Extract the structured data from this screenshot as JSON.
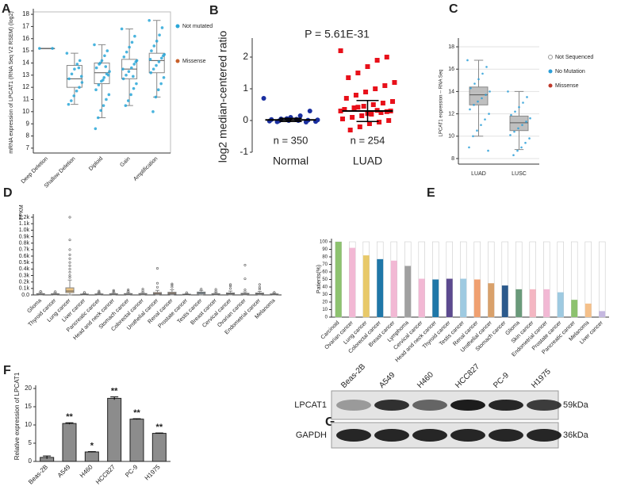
{
  "chart_data": [
    {
      "panel": "A",
      "type": "box",
      "y_label": "mRNA expression of LPCAT1 (RNA Seq V2 RSEM) (log2)",
      "categories": [
        "Deep Deletion",
        "Shallow Deletion",
        "Diploid",
        "Gain",
        "Amplification"
      ],
      "ylim": [
        6.6,
        18.2
      ],
      "yticks": [
        7,
        8,
        9,
        10,
        11,
        12,
        13,
        14,
        15,
        16,
        17,
        18
      ],
      "grid": false,
      "frame": true,
      "box_color": "none",
      "boxes": [
        {
          "q1": 15.2,
          "median": 15.2,
          "q3": 15.2,
          "whisker_low": 15.2,
          "whisker_high": 15.2
        },
        {
          "q1": 12.0,
          "median": 12.7,
          "q3": 13.8,
          "whisker_low": 10.6,
          "whisker_high": 14.8
        },
        {
          "q1": 12.3,
          "median": 13.2,
          "q3": 14.0,
          "whisker_low": 9.5,
          "whisker_high": 15.5
        },
        {
          "q1": 12.7,
          "median": 13.5,
          "q3": 14.3,
          "whisker_low": 10.5,
          "whisker_high": 16.8
        },
        {
          "q1": 13.2,
          "median": 14.2,
          "q3": 14.8,
          "whisker_low": 11.2,
          "whisker_high": 17.5
        }
      ],
      "series": [
        {
          "name": "Not mutated",
          "color": "#2aa7d8",
          "values": [
            [
              15.2,
              15.2
            ],
            [
              14.8,
              14.2,
              13.9,
              13.5,
              13.1,
              12.7,
              12.4,
              12.0,
              11.7,
              11.3,
              10.9,
              10.6,
              12.9,
              13.6
            ],
            [
              15.5,
              15.0,
              14.6,
              14.2,
              13.9,
              13.6,
              13.3,
              13.1,
              12.8,
              12.5,
              12.2,
              11.8,
              11.4,
              11.0,
              10.5,
              10.1,
              9.5,
              8.6,
              13.0,
              13.7,
              12.6,
              14.0
            ],
            [
              16.8,
              16.2,
              15.7,
              15.3,
              14.9,
              14.5,
              14.2,
              13.9,
              13.6,
              13.3,
              13.0,
              12.7,
              12.3,
              11.9,
              11.4,
              10.9,
              10.5,
              13.5,
              14.1,
              12.9
            ],
            [
              17.5,
              16.9,
              16.3,
              15.8,
              15.4,
              15.0,
              14.7,
              14.4,
              14.1,
              13.8,
              13.5,
              13.2,
              12.8,
              12.3,
              11.8,
              11.2,
              10.0,
              14.3,
              14.6
            ]
          ]
        },
        {
          "name": "Missense",
          "color": "#c8602a",
          "values": [
            [],
            [],
            [],
            [],
            []
          ]
        }
      ]
    },
    {
      "panel": "B",
      "type": "scatter",
      "y_label": "log2 median-centered ratio",
      "annotation": "P = 5.61E-31",
      "categories": [
        "Normal",
        "LUAD"
      ],
      "count_labels": [
        "n = 350",
        "n = 254"
      ],
      "ylim": [
        -1,
        2.5
      ],
      "yticks": [
        -1,
        0,
        1,
        2
      ],
      "grid": false,
      "colors": [
        "#1a2fa0",
        "#e8101a"
      ],
      "points": [
        [
          0.7,
          0.3,
          0.15,
          0.1,
          0.05,
          0.03,
          0.02,
          0.01,
          0,
          0,
          -0.01,
          -0.02,
          -0.03,
          -0.05,
          0.04,
          0.06,
          -0.04
        ],
        [
          2.2,
          2.0,
          1.9,
          1.7,
          1.5,
          1.35,
          1.2,
          1.1,
          1.0,
          0.9,
          0.8,
          0.7,
          0.6,
          0.55,
          0.5,
          0.45,
          0.4,
          0.35,
          0.3,
          0.25,
          0.2,
          0.15,
          0.1,
          0.05,
          0,
          -0.05,
          -0.1,
          -0.2,
          -0.3,
          0.3,
          0.28,
          0.32,
          0.22,
          0.42
        ]
      ],
      "means": [
        0.02,
        0.3
      ],
      "sds": [
        0.05,
        0.33
      ]
    },
    {
      "panel": "C",
      "type": "box",
      "y_label": "LPCAT1 expression -- RNA Seq",
      "categories": [
        "LUAD",
        "LUSC"
      ],
      "ylim": [
        7.5,
        18.5
      ],
      "yticks": [
        8,
        10,
        12,
        14,
        16,
        18
      ],
      "grid": true,
      "frame": false,
      "box_color": "#b4b4b4",
      "boxes": [
        {
          "q1": 12.8,
          "median": 13.7,
          "q3": 14.4,
          "whisker_low": 10.0,
          "whisker_high": 16.8
        },
        {
          "q1": 10.5,
          "median": 11.2,
          "q3": 11.8,
          "whisker_low": 8.8,
          "whisker_high": 14.0
        }
      ],
      "series": [
        {
          "name": "Not Sequenced",
          "color": "#ffffff",
          "values": [
            [],
            []
          ]
        },
        {
          "name": "No Mutation",
          "color": "#2c9fd8",
          "values": [
            [
              16.8,
              16.2,
              15.6,
              15.1,
              14.7,
              14.3,
              14.0,
              13.7,
              13.4,
              13.1,
              12.8,
              12.4,
              12.0,
              11.5,
              11.0,
              10.5,
              10.0,
              9.0,
              8.7
            ],
            [
              14.0,
              13.5,
              13.0,
              12.6,
              12.2,
              11.9,
              11.6,
              11.3,
              11.0,
              10.7,
              10.4,
              10.1,
              9.8,
              9.4,
              9.0,
              8.7,
              8.3
            ]
          ]
        },
        {
          "name": "Missense",
          "color": "#c0392b",
          "values": [
            [],
            []
          ]
        }
      ]
    },
    {
      "panel": "D",
      "type": "box",
      "y_label": "FPKM",
      "categories": [
        "Glioma",
        "Thyroid cancer",
        "Lung cancer",
        "Liver cancer",
        "Pancreatic cancer",
        "Head and neck cancer",
        "Stomach cancer",
        "Colorectal cancer",
        "Urothelial cancer",
        "Renal cancer",
        "Prostate cancer",
        "Testis cancer",
        "Breast cancer",
        "Cervical cancer",
        "Ovarian cancer",
        "Endometrial cancer",
        "Melanoma"
      ],
      "ylim": [
        0,
        1200
      ],
      "yticks": [
        {
          "value": 0,
          "label": "0.0"
        },
        {
          "value": 100,
          "label": "0.1k"
        },
        {
          "value": 200,
          "label": "0.2k"
        },
        {
          "value": 300,
          "label": "0.3k"
        },
        {
          "value": 400,
          "label": "0.4k"
        },
        {
          "value": 500,
          "label": "0.5k"
        },
        {
          "value": 600,
          "label": "0.6k"
        },
        {
          "value": 700,
          "label": "0.7k"
        },
        {
          "value": 800,
          "label": "0.8k"
        },
        {
          "value": 900,
          "label": "0.9k"
        },
        {
          "value": 1000,
          "label": "1.0k"
        },
        {
          "value": 1100,
          "label": "1.1k"
        },
        {
          "value": 1200,
          "label": "1.2k"
        }
      ],
      "grid": false,
      "frame": false,
      "box_colors": [
        "#c8c8c8",
        "#c8c8c8",
        "#e8b86c",
        "#c8c8c8",
        "#c8c8c8",
        "#c8c8c8",
        "#c8c8c8",
        "#c8c8c8",
        "#e8a070",
        "#d8a070",
        "#c8c8c8",
        "#8fc7e8",
        "#c8c8c8",
        "#c8c8c8",
        "#c8c8c8",
        "#c8c8c8",
        "#c8c8c8"
      ],
      "boxes": [
        {
          "q1": 5,
          "median": 12,
          "q3": 20,
          "whisker_low": 0,
          "whisker_high": 40,
          "outliers": [
            55
          ]
        },
        {
          "q1": 4,
          "median": 10,
          "q3": 18,
          "whisker_low": 0,
          "whisker_high": 35,
          "outliers": [
            50
          ]
        },
        {
          "q1": 35,
          "median": 60,
          "q3": 110,
          "whisker_low": 2,
          "whisker_high": 230,
          "outliers": [
            1200,
            850,
            700,
            620,
            560,
            500,
            450,
            400,
            350,
            300,
            270
          ]
        },
        {
          "q1": 3,
          "median": 8,
          "q3": 14,
          "whisker_low": 0,
          "whisker_high": 25,
          "outliers": [
            40
          ]
        },
        {
          "q1": 4,
          "median": 9,
          "q3": 16,
          "whisker_low": 0,
          "whisker_high": 30,
          "outliers": [
            45,
            60
          ]
        },
        {
          "q1": 5,
          "median": 11,
          "q3": 19,
          "whisker_low": 0,
          "whisker_high": 35,
          "outliers": [
            55,
            70
          ]
        },
        {
          "q1": 5,
          "median": 12,
          "q3": 21,
          "whisker_low": 0,
          "whisker_high": 40,
          "outliers": [
            60,
            80
          ]
        },
        {
          "q1": 6,
          "median": 13,
          "q3": 22,
          "whisker_low": 0,
          "whisker_high": 40,
          "outliers": [
            65,
            90
          ]
        },
        {
          "q1": 10,
          "median": 22,
          "q3": 38,
          "whisker_low": 0,
          "whisker_high": 70,
          "outliers": [
            120,
            180,
            410
          ]
        },
        {
          "q1": 12,
          "median": 25,
          "q3": 42,
          "whisker_low": 0,
          "whisker_high": 80,
          "outliers": [
            120,
            150,
            170
          ]
        },
        {
          "q1": 3,
          "median": 7,
          "q3": 12,
          "whisker_low": 0,
          "whisker_high": 22,
          "outliers": [
            35
          ]
        },
        {
          "q1": 15,
          "median": 30,
          "q3": 45,
          "whisker_low": 2,
          "whisker_high": 70,
          "outliers": [
            90
          ]
        },
        {
          "q1": 5,
          "median": 11,
          "q3": 20,
          "whisker_low": 0,
          "whisker_high": 38,
          "outliers": [
            60,
            85
          ]
        },
        {
          "q1": 8,
          "median": 18,
          "q3": 32,
          "whisker_low": 0,
          "whisker_high": 60,
          "outliers": [
            100,
            140,
            160
          ]
        },
        {
          "q1": 6,
          "median": 14,
          "q3": 25,
          "whisker_low": 0,
          "whisker_high": 48,
          "outliers": [
            80,
            250,
            460
          ]
        },
        {
          "q1": 8,
          "median": 17,
          "q3": 30,
          "whisker_low": 0,
          "whisker_high": 55,
          "outliers": [
            90,
            120,
            160
          ]
        },
        {
          "q1": 4,
          "median": 9,
          "q3": 16,
          "whisker_low": 0,
          "whisker_high": 28,
          "outliers": [
            40
          ]
        }
      ]
    },
    {
      "panel": "E",
      "type": "bar",
      "y_label": "Patients(%)",
      "categories": [
        "Carcinoid",
        "Ovarian cancer",
        "Lung cancer",
        "Colorectal cancer",
        "Breast cancer",
        "Lymphoma",
        "Cervical cancer",
        "Head and neck cancer",
        "Thyroid cancer",
        "Testis cancer",
        "Renal cancer",
        "Urothelial cancer",
        "Stomach cancer",
        "Glioma",
        "Skin cancer",
        "Endometrial cancer",
        "Prostate cancer",
        "Pancreatic cancer",
        "Melanoma",
        "Liver cancer"
      ],
      "values": [
        100,
        92,
        82,
        77,
        75,
        68,
        51,
        50,
        51,
        51,
        50,
        45,
        42,
        37,
        37,
        37,
        33,
        23,
        18,
        8
      ],
      "colors": [
        "#8dc26f",
        "#f2b8d4",
        "#e8c96a",
        "#1f77a8",
        "#f2b8d4",
        "#a0a0a0",
        "#f2b8d4",
        "#1f77a8",
        "#5c4a8f",
        "#9ecae1",
        "#f0a070",
        "#d9a16b",
        "#2c5a8c",
        "#6a9a7a",
        "#f4b6c2",
        "#f2b8d4",
        "#9ecae1",
        "#8dc26f",
        "#f5c08a",
        "#c5b8e0"
      ],
      "ylim": [
        0,
        100
      ],
      "yticks": [
        0,
        10,
        20,
        30,
        40,
        50,
        60,
        70,
        80,
        90,
        100
      ],
      "grid": false,
      "frame_bars": true
    },
    {
      "panel": "F",
      "type": "bar",
      "y_label": "Relative expression of LPCAT1",
      "categories": [
        "Beas-2B",
        "A549",
        "H460",
        "HCC827",
        "PC-9",
        "H1975"
      ],
      "values": [
        1.1,
        10.4,
        2.6,
        17.3,
        11.6,
        7.7
      ],
      "errors": [
        0.4,
        0.2,
        0.1,
        0.4,
        0.1,
        0.1
      ],
      "annotations": [
        null,
        "**",
        "*",
        "**",
        "**",
        "**"
      ],
      "color": "#8c8c8c",
      "ylim": [
        0,
        20
      ],
      "yticks": [
        0,
        5,
        10,
        15,
        20
      ],
      "grid": false
    }
  ],
  "blot": {
    "panel": "G",
    "lanes": [
      "Beas-2B",
      "A549",
      "H460",
      "HCC827",
      "PC-9",
      "H1975"
    ],
    "rows": [
      {
        "name": "LPCAT1",
        "size": "59kDa"
      },
      {
        "name": "GAPDH",
        "size": "36kDa"
      }
    ]
  }
}
